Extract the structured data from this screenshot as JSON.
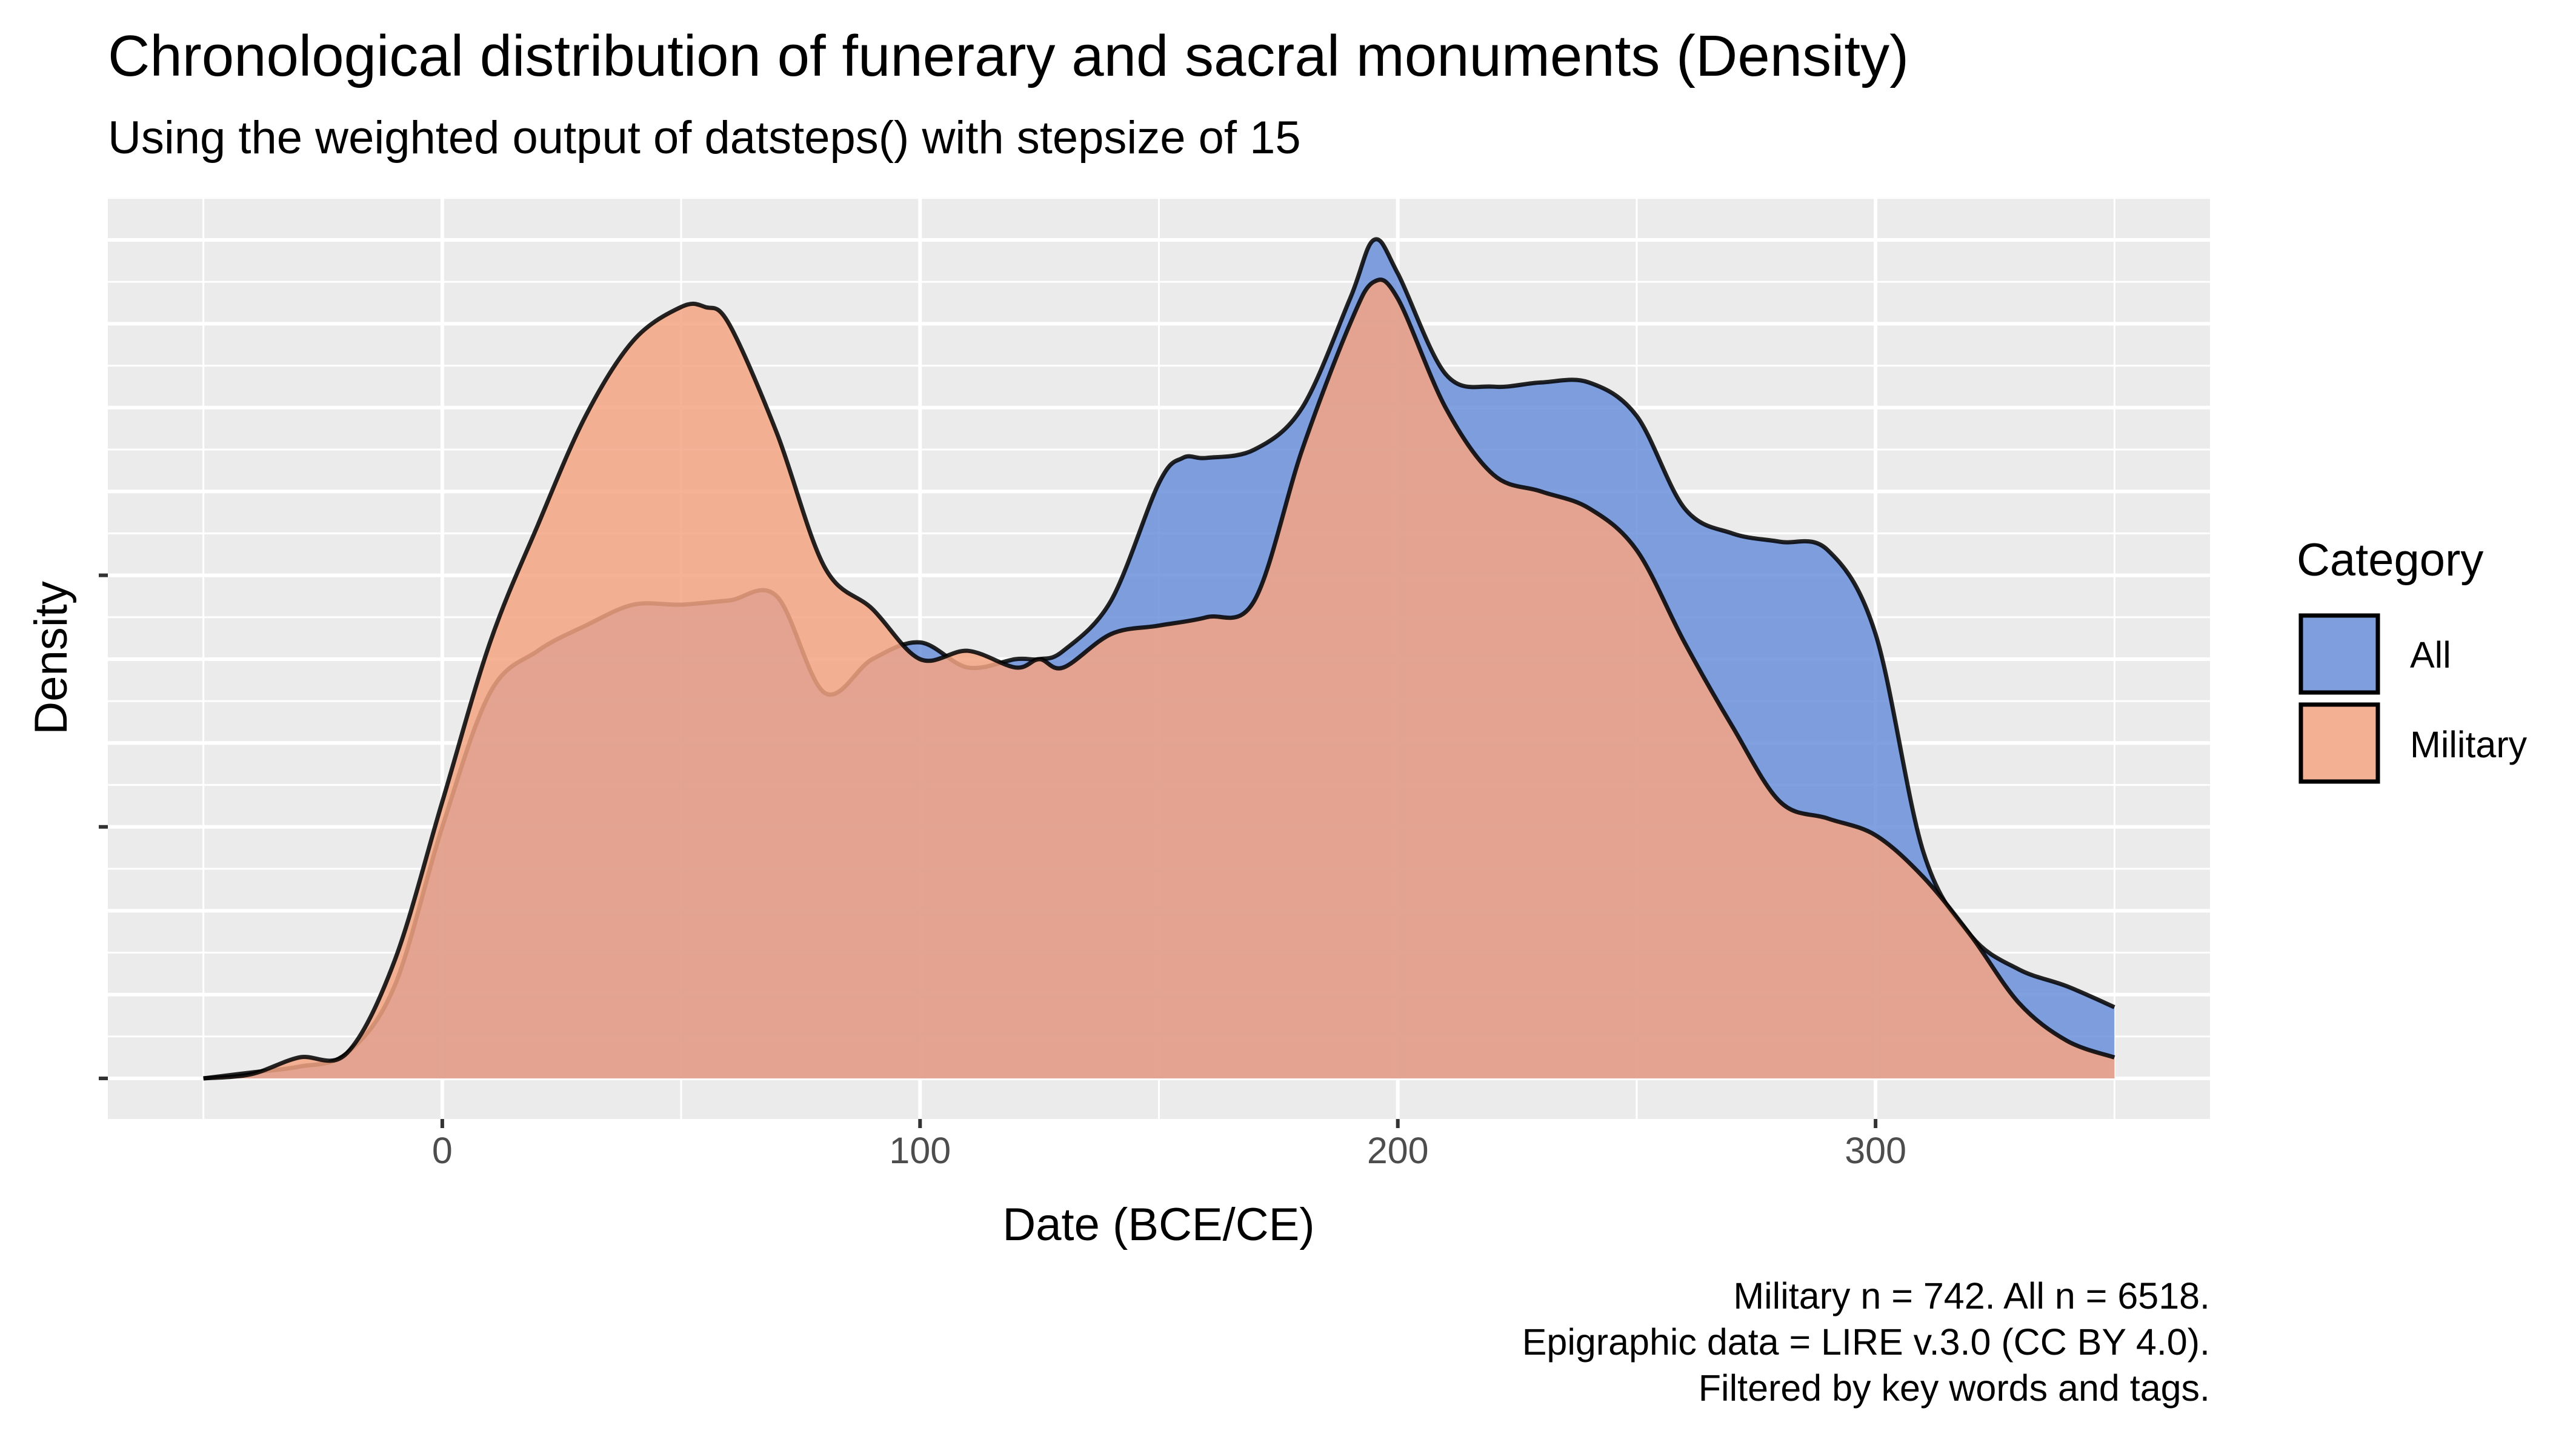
{
  "chart_data": {
    "type": "area",
    "title": "Chronological distribution of funerary and sacral monuments (Density)",
    "subtitle": "Using the weighted output of datsteps() with stepsize of 15",
    "xlabel": "Date (BCE/CE)",
    "ylabel": "Density",
    "xlim": [
      -70,
      370
    ],
    "ylim": [
      0,
      1.03
    ],
    "x_ticks": [
      0,
      100,
      200,
      300
    ],
    "y_ticks_labeled": false,
    "grid": true,
    "legend": {
      "title": "Category",
      "placement": "right"
    },
    "caption": [
      "Military n = 742. All n = 6518.",
      "Epigraphic data = LIRE v.3.0 (CC BY 4.0).",
      "Filtered by key words and tags."
    ],
    "series": [
      {
        "name": "All",
        "color": "#6A8FDB",
        "x": [
          -50,
          -40,
          -30,
          -20,
          -10,
          0,
          10,
          20,
          30,
          40,
          50,
          60,
          70,
          80,
          90,
          100,
          110,
          120,
          125,
          130,
          140,
          150,
          155,
          160,
          170,
          180,
          190,
          195,
          200,
          210,
          220,
          230,
          240,
          250,
          260,
          270,
          280,
          290,
          300,
          310,
          320,
          330,
          340,
          350
        ],
        "y": [
          0.0,
          0.007,
          0.014,
          0.03,
          0.11,
          0.3,
          0.46,
          0.51,
          0.54,
          0.565,
          0.565,
          0.57,
          0.575,
          0.46,
          0.5,
          0.52,
          0.49,
          0.5,
          0.5,
          0.51,
          0.57,
          0.71,
          0.74,
          0.74,
          0.75,
          0.8,
          0.93,
          1.0,
          0.96,
          0.84,
          0.825,
          0.83,
          0.83,
          0.79,
          0.68,
          0.65,
          0.64,
          0.63,
          0.53,
          0.27,
          0.17,
          0.13,
          0.11,
          0.085
        ]
      },
      {
        "name": "Military",
        "color": "#F4A582",
        "x": [
          -50,
          -40,
          -30,
          -20,
          -10,
          0,
          10,
          20,
          30,
          40,
          50,
          55,
          60,
          70,
          80,
          90,
          100,
          110,
          120,
          125,
          130,
          140,
          150,
          160,
          170,
          180,
          190,
          195,
          200,
          210,
          220,
          230,
          240,
          250,
          260,
          270,
          280,
          290,
          300,
          310,
          320,
          330,
          340,
          350
        ],
        "y": [
          0.0,
          0.005,
          0.025,
          0.03,
          0.14,
          0.33,
          0.52,
          0.66,
          0.79,
          0.88,
          0.92,
          0.92,
          0.9,
          0.77,
          0.61,
          0.56,
          0.5,
          0.51,
          0.49,
          0.5,
          0.49,
          0.53,
          0.54,
          0.55,
          0.57,
          0.75,
          0.9,
          0.95,
          0.93,
          0.8,
          0.72,
          0.7,
          0.68,
          0.63,
          0.52,
          0.42,
          0.33,
          0.31,
          0.29,
          0.24,
          0.17,
          0.09,
          0.045,
          0.025
        ]
      }
    ]
  }
}
